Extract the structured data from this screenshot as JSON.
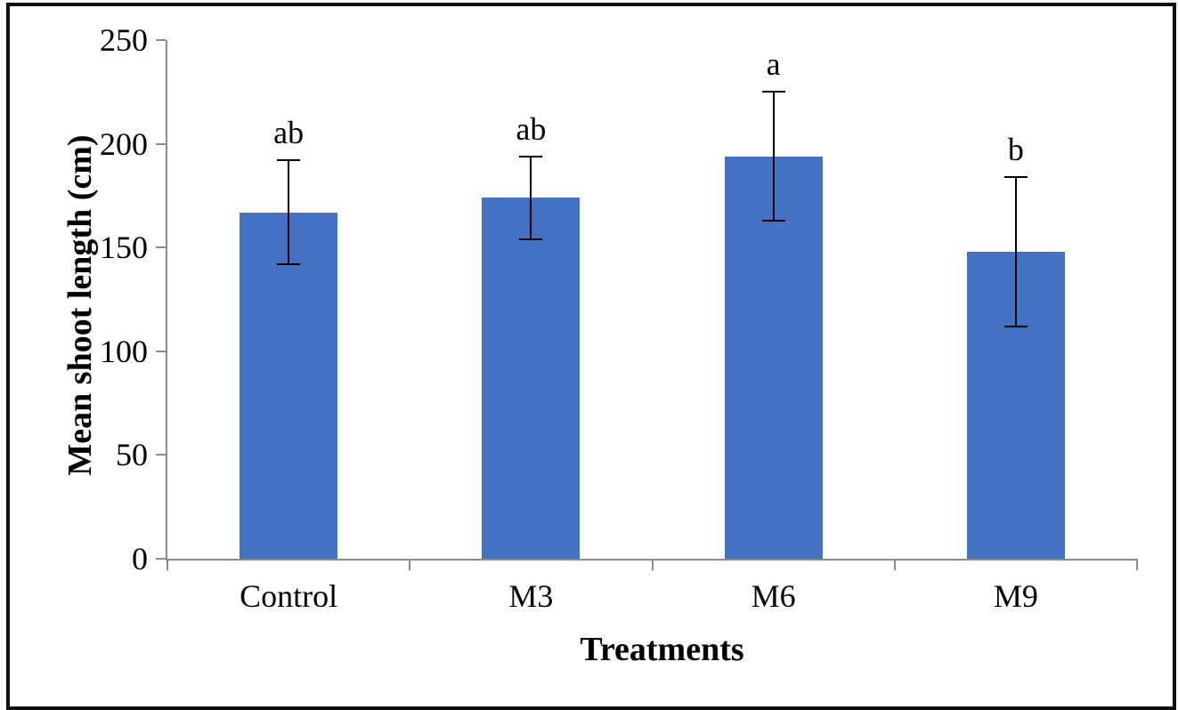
{
  "figure": {
    "background_color": "#ffffff",
    "frame_color": "#0f0f0f"
  },
  "chart_data": {
    "type": "bar",
    "title": "",
    "xlabel": "Treatments",
    "ylabel": "Mean shoot length (cm)",
    "categories": [
      "Control",
      "M3",
      "M6",
      "M9"
    ],
    "values": [
      167,
      174,
      194,
      148
    ],
    "error_bars": [
      25,
      20,
      31,
      36
    ],
    "significance_letters": [
      "ab",
      "ab",
      "a",
      "b"
    ],
    "ylim": [
      0,
      250
    ],
    "ytick_step": 50,
    "ytick_labels": [
      "0",
      "50",
      "100",
      "150",
      "200",
      "250"
    ],
    "grid": "off",
    "legend": "none",
    "bar_color": "#4472C4",
    "axis_color": "#8C8C8C",
    "error_bar_color": "#000000",
    "text_color": "#000000"
  }
}
